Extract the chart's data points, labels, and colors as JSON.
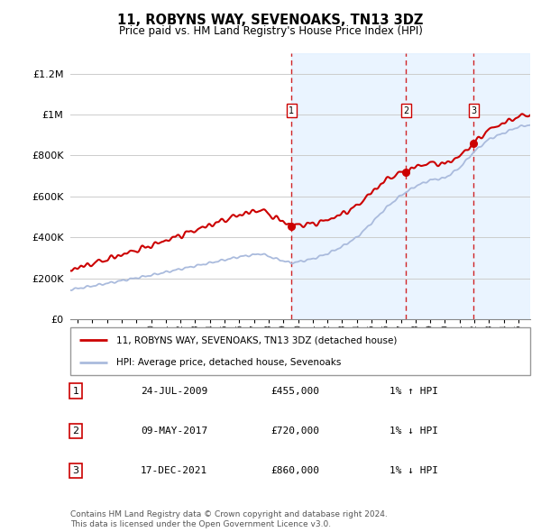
{
  "title": "11, ROBYNS WAY, SEVENOAKS, TN13 3DZ",
  "subtitle": "Price paid vs. HM Land Registry's House Price Index (HPI)",
  "ylabel_ticks": [
    "£0",
    "£200K",
    "£400K",
    "£600K",
    "£800K",
    "£1M",
    "£1.2M"
  ],
  "ytick_values": [
    0,
    200000,
    400000,
    600000,
    800000,
    1000000,
    1200000
  ],
  "ylim": [
    0,
    1300000
  ],
  "xlim_start": 1994.5,
  "xlim_end": 2025.8,
  "sale_dates": [
    2009.56,
    2017.36,
    2021.96
  ],
  "sale_prices": [
    455000,
    720000,
    860000
  ],
  "sale_labels": [
    "1",
    "2",
    "3"
  ],
  "legend_entries": [
    "11, ROBYNS WAY, SEVENOAKS, TN13 3DZ (detached house)",
    "HPI: Average price, detached house, Sevenoaks"
  ],
  "table_rows": [
    [
      "1",
      "24-JUL-2009",
      "£455,000",
      "1% ↑ HPI"
    ],
    [
      "2",
      "09-MAY-2017",
      "£720,000",
      "1% ↓ HPI"
    ],
    [
      "3",
      "17-DEC-2021",
      "£860,000",
      "1% ↓ HPI"
    ]
  ],
  "footer": "Contains HM Land Registry data © Crown copyright and database right 2024.\nThis data is licensed under the Open Government Licence v3.0.",
  "line_color_property": "#cc0000",
  "line_color_hpi": "#aabbdd",
  "sale_dot_color": "#cc0000",
  "background_shade": "#ddeeff",
  "vline_color": "#cc0000",
  "grid_color": "#cccccc"
}
